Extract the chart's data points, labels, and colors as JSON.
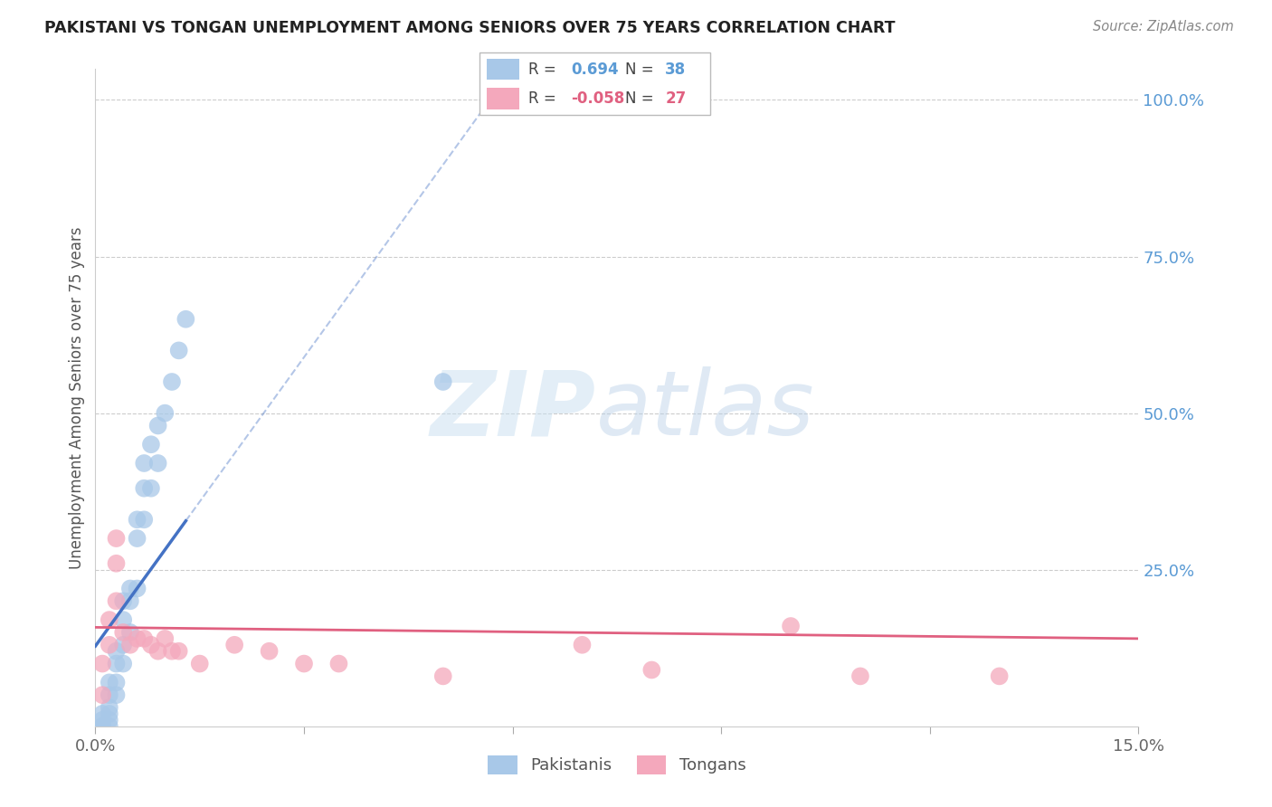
{
  "title": "PAKISTANI VS TONGAN UNEMPLOYMENT AMONG SENIORS OVER 75 YEARS CORRELATION CHART",
  "source": "Source: ZipAtlas.com",
  "ylabel": "Unemployment Among Seniors over 75 years",
  "pakistani_R": 0.694,
  "pakistani_N": 38,
  "tongan_R": -0.058,
  "tongan_N": 27,
  "pakistani_color": "#A8C8E8",
  "tongan_color": "#F4A8BC",
  "regression_line_color_pak": "#4472C4",
  "regression_line_color_ton": "#E06080",
  "background_color": "#FFFFFF",
  "pakistani_x": [
    0.001,
    0.001,
    0.001,
    0.001,
    0.001,
    0.002,
    0.002,
    0.002,
    0.002,
    0.002,
    0.002,
    0.003,
    0.003,
    0.003,
    0.003,
    0.004,
    0.004,
    0.004,
    0.004,
    0.005,
    0.005,
    0.005,
    0.006,
    0.006,
    0.006,
    0.007,
    0.007,
    0.007,
    0.008,
    0.008,
    0.009,
    0.009,
    0.01,
    0.011,
    0.012,
    0.013,
    0.05,
    0.058
  ],
  "pakistani_y": [
    0.0,
    0.0,
    0.0,
    0.01,
    0.02,
    0.0,
    0.01,
    0.02,
    0.03,
    0.05,
    0.07,
    0.05,
    0.07,
    0.1,
    0.12,
    0.1,
    0.13,
    0.17,
    0.2,
    0.15,
    0.2,
    0.22,
    0.22,
    0.3,
    0.33,
    0.33,
    0.38,
    0.42,
    0.38,
    0.45,
    0.42,
    0.48,
    0.5,
    0.55,
    0.6,
    0.65,
    0.55,
    1.0
  ],
  "tongan_x": [
    0.001,
    0.001,
    0.002,
    0.002,
    0.003,
    0.003,
    0.003,
    0.004,
    0.005,
    0.006,
    0.007,
    0.008,
    0.009,
    0.01,
    0.011,
    0.012,
    0.015,
    0.02,
    0.025,
    0.03,
    0.035,
    0.05,
    0.07,
    0.08,
    0.1,
    0.11,
    0.13
  ],
  "tongan_y": [
    0.05,
    0.1,
    0.13,
    0.17,
    0.2,
    0.26,
    0.3,
    0.15,
    0.13,
    0.14,
    0.14,
    0.13,
    0.12,
    0.14,
    0.12,
    0.12,
    0.1,
    0.13,
    0.12,
    0.1,
    0.1,
    0.08,
    0.13,
    0.09,
    0.16,
    0.08,
    0.08
  ],
  "xlim": [
    0.0,
    0.15
  ],
  "ylim": [
    0.0,
    1.05
  ],
  "xtick_positions": [
    0.0,
    0.03,
    0.06,
    0.09,
    0.12,
    0.15
  ],
  "xtick_labels": [
    "0.0%",
    "",
    "",
    "",
    "",
    "15.0%"
  ],
  "right_ytick_positions": [
    0.0,
    0.25,
    0.5,
    0.75,
    1.0
  ],
  "right_ytick_labels": [
    "",
    "25.0%",
    "50.0%",
    "75.0%",
    "100.0%"
  ]
}
